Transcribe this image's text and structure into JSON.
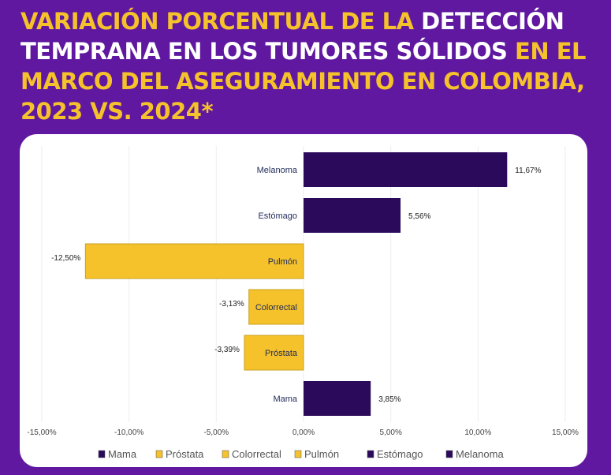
{
  "title": {
    "parts": [
      {
        "text": "VARIACIÓN PORCENTUAL DE LA ",
        "color": "yellow"
      },
      {
        "text": "DETECCIÓN TEMPRANA EN LOS TUMORES SÓLIDOS ",
        "color": "white"
      },
      {
        "text": "EN EL MARCO DEL ASEGURAMIENTO EN COLOMBIA, 2023 VS. 2024*",
        "color": "yellow"
      }
    ]
  },
  "colors": {
    "background": "#5f189f",
    "yellow": "#f5c22b",
    "dark_purple": "#2b0a5c"
  },
  "chart_data": {
    "type": "bar",
    "orientation": "horizontal",
    "categories": [
      "Melanoma",
      "Estómago",
      "Pulmón",
      "Colorrectal",
      "Próstata",
      "Mama"
    ],
    "values": [
      11.67,
      5.56,
      -12.5,
      -3.13,
      -3.39,
      3.85
    ],
    "data_labels": [
      "11,67%",
      "5,56%",
      "-12,50%",
      "-3,13%",
      "-3,39%",
      "3,85%"
    ],
    "bar_colors": [
      "#2b0a5c",
      "#2b0a5c",
      "#f5c22b",
      "#f5c22b",
      "#f5c22b",
      "#2b0a5c"
    ],
    "xlim": [
      -15,
      15
    ],
    "xticks": [
      -15,
      -10,
      -5,
      0,
      5,
      10,
      15
    ],
    "xtick_labels": [
      "-15,00%",
      "-10,00%",
      "-5,00%",
      "0,00%",
      "5,00%",
      "10,00%",
      "15,00%"
    ],
    "grid": "vertical",
    "legend": {
      "placement": "bottom",
      "entries": [
        {
          "name": "Mama",
          "color": "#2b0a5c"
        },
        {
          "name": "Próstata",
          "color": "#f5c22b"
        },
        {
          "name": "Colorrectal",
          "color": "#f5c22b"
        },
        {
          "name": "Pulmón",
          "color": "#f5c22b"
        },
        {
          "name": "Estómago",
          "color": "#2b0a5c"
        },
        {
          "name": "Melanoma",
          "color": "#2b0a5c"
        }
      ]
    }
  }
}
